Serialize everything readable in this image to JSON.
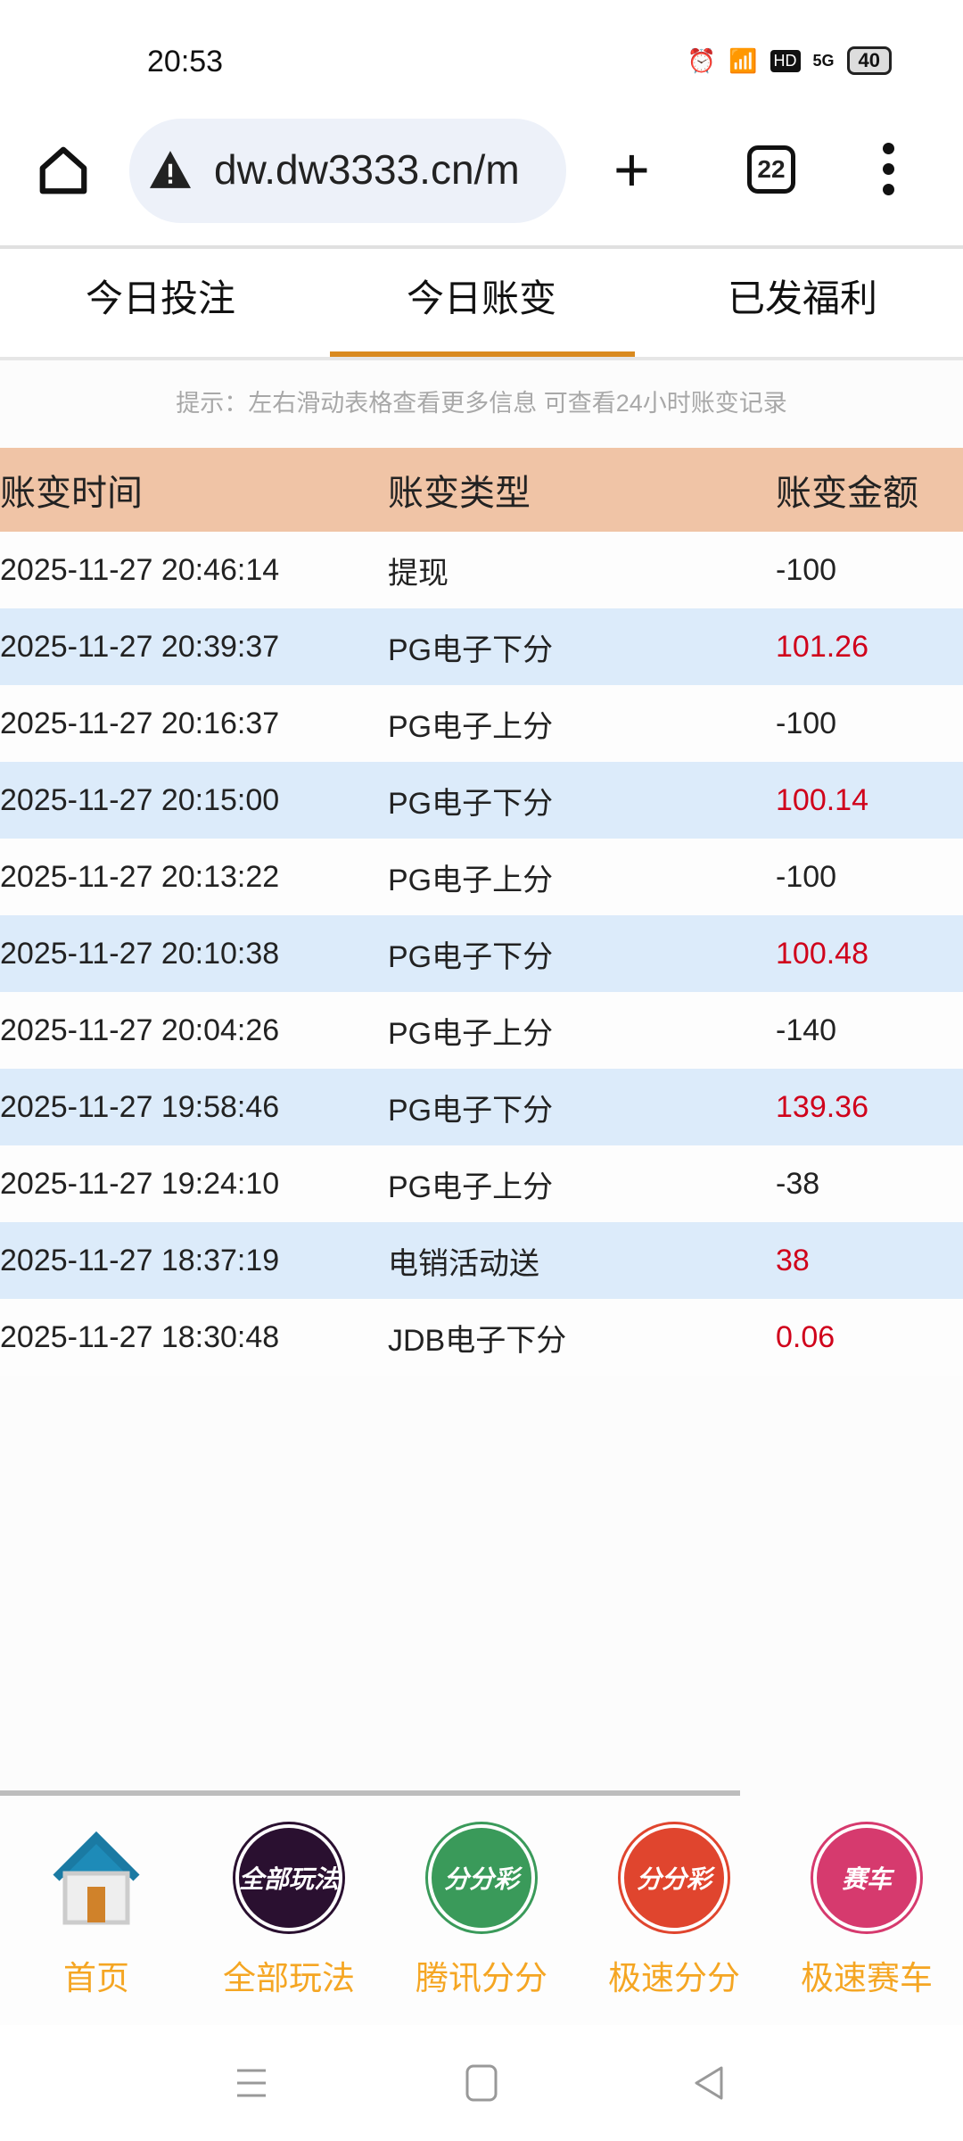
{
  "status_bar": {
    "time": "20:53",
    "battery": "40",
    "network": "5G",
    "hd": "HD"
  },
  "browser": {
    "url": "dw.dw3333.cn/m",
    "tab_count": "22"
  },
  "tabs": [
    {
      "label": "今日投注",
      "active": false
    },
    {
      "label": "今日账变",
      "active": true
    },
    {
      "label": "已发福利",
      "active": false
    }
  ],
  "hint": "提示：左右滑动表格查看更多信息  可查看24小时账变记录",
  "table": {
    "headers": [
      "账变时间",
      "账变类型",
      "账变金额"
    ],
    "rows": [
      {
        "time": "2025-11-27 20:46:14",
        "type": "提现",
        "amount": "-100",
        "positive": false
      },
      {
        "time": "2025-11-27 20:39:37",
        "type": "PG电子下分",
        "amount": "101.26",
        "positive": true
      },
      {
        "time": "2025-11-27 20:16:37",
        "type": "PG电子上分",
        "amount": "-100",
        "positive": false
      },
      {
        "time": "2025-11-27 20:15:00",
        "type": "PG电子下分",
        "amount": "100.14",
        "positive": true
      },
      {
        "time": "2025-11-27 20:13:22",
        "type": "PG电子上分",
        "amount": "-100",
        "positive": false
      },
      {
        "time": "2025-11-27 20:10:38",
        "type": "PG电子下分",
        "amount": "100.48",
        "positive": true
      },
      {
        "time": "2025-11-27 20:04:26",
        "type": "PG电子上分",
        "amount": "-140",
        "positive": false
      },
      {
        "time": "2025-11-27 19:58:46",
        "type": "PG电子下分",
        "amount": "139.36",
        "positive": true
      },
      {
        "time": "2025-11-27 19:24:10",
        "type": "PG电子上分",
        "amount": "-38",
        "positive": false
      },
      {
        "time": "2025-11-27 18:37:19",
        "type": "电销活动送",
        "amount": "38",
        "positive": true
      },
      {
        "time": "2025-11-27 18:30:48",
        "type": "JDB电子下分",
        "amount": "0.06",
        "positive": true
      }
    ]
  },
  "bottom_nav": [
    {
      "label": "首页",
      "icon": "house-icon",
      "icon_text": ""
    },
    {
      "label": "全部玩法",
      "icon": "all-games-icon",
      "icon_text": "全部玩法",
      "color": "#2a1030"
    },
    {
      "label": "腾讯分分",
      "icon": "tencent-ffc-icon",
      "icon_text": "分分彩",
      "color": "#3a9a5a"
    },
    {
      "label": "极速分分",
      "icon": "speed-ffc-icon",
      "icon_text": "分分彩",
      "color": "#e0452e"
    },
    {
      "label": "极速赛车",
      "icon": "speed-racing-icon",
      "icon_text": "赛车",
      "color": "#d63a6e"
    }
  ],
  "colors": {
    "accent": "#d98a1f",
    "header_bg": "#f0c4a6",
    "row_alt": "#dcebfa",
    "positive": "#d0021b",
    "nav_label": "#f5a623"
  }
}
